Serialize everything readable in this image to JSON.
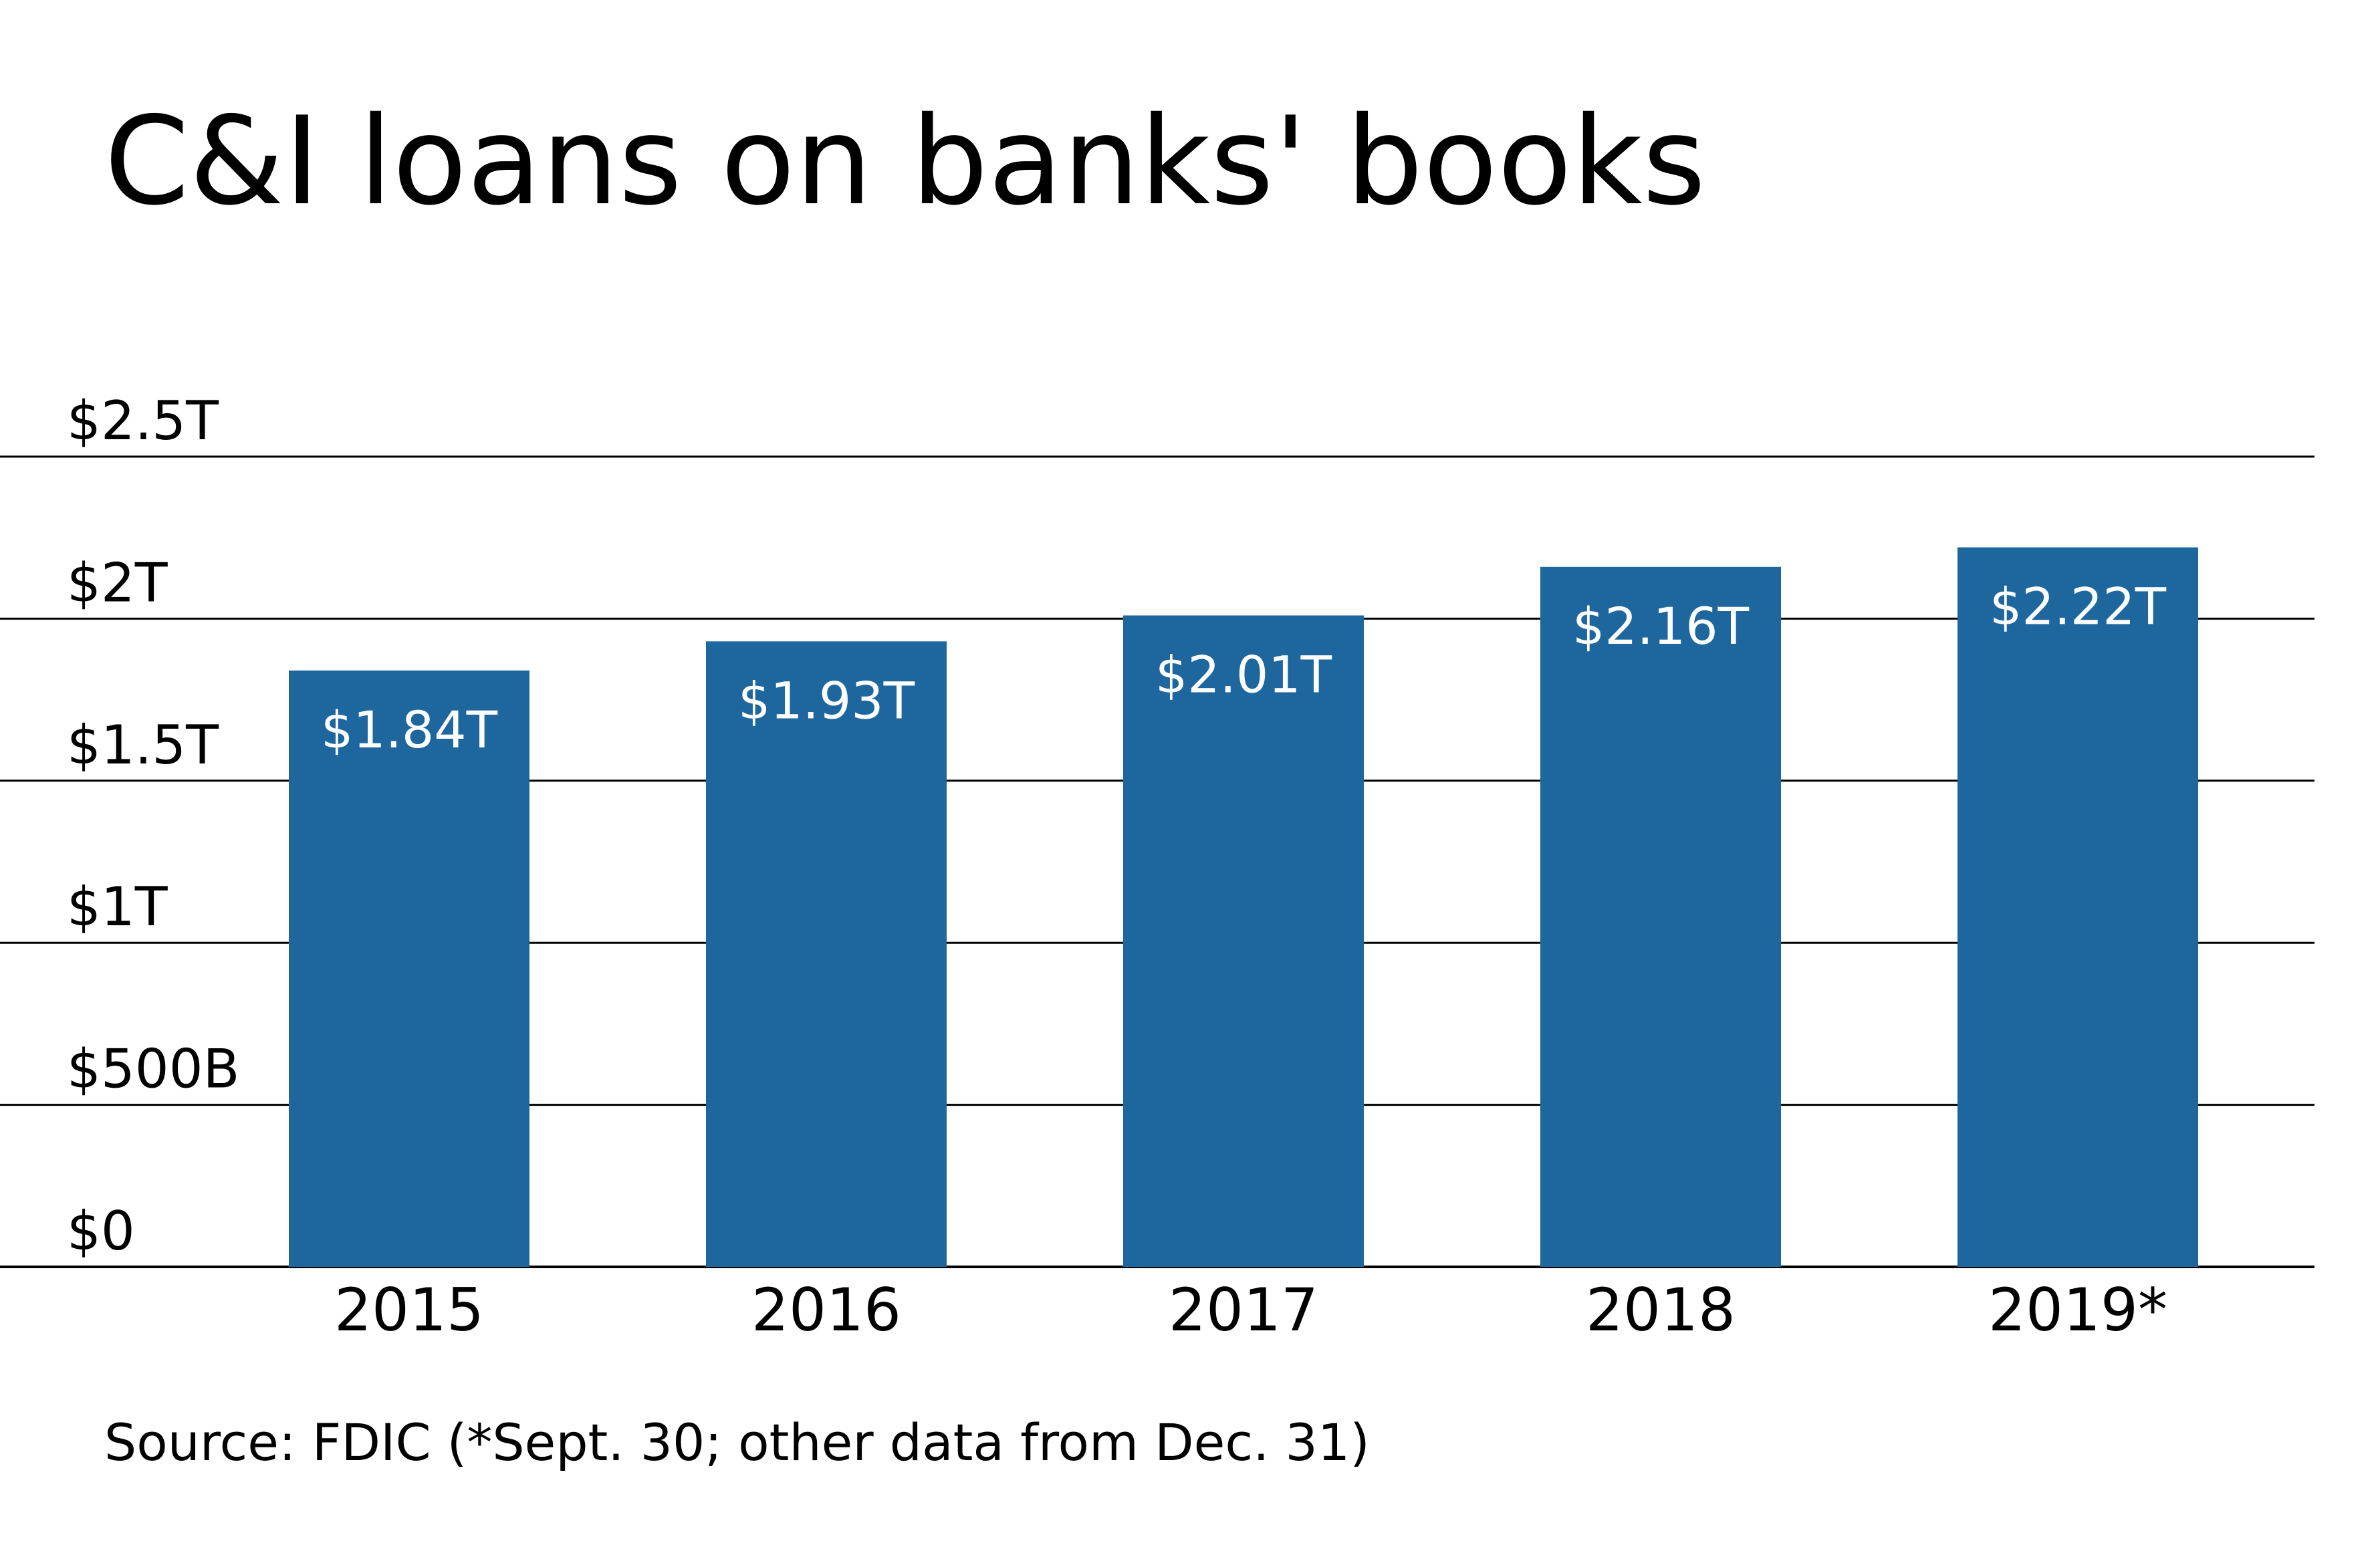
{
  "chart_data": {
    "type": "bar",
    "title": "C&I loans on banks' books",
    "source": "Source: FDIC (*Sept. 30; other data from Dec. 31)",
    "categories": [
      "2015",
      "2016",
      "2017",
      "2018",
      "2019*"
    ],
    "values": [
      1.84,
      1.93,
      2.01,
      2.16,
      2.22
    ],
    "value_labels": [
      "$1.84T",
      "$1.93T",
      "$2.01T",
      "$2.16T",
      "$2.22T"
    ],
    "y_ticks": [
      0,
      0.5,
      1,
      1.5,
      2,
      2.5
    ],
    "y_tick_labels": [
      "$0",
      "$500B",
      "$1T",
      "$1.5T",
      "$2T",
      "$2.5T"
    ],
    "ylim": [
      0,
      2.5
    ],
    "xlabel": "",
    "ylabel": "",
    "grid": true,
    "legend": "none",
    "colors": {
      "bar": "#1d679e",
      "grid": "#000000",
      "bar_label": "#ffffff"
    }
  }
}
